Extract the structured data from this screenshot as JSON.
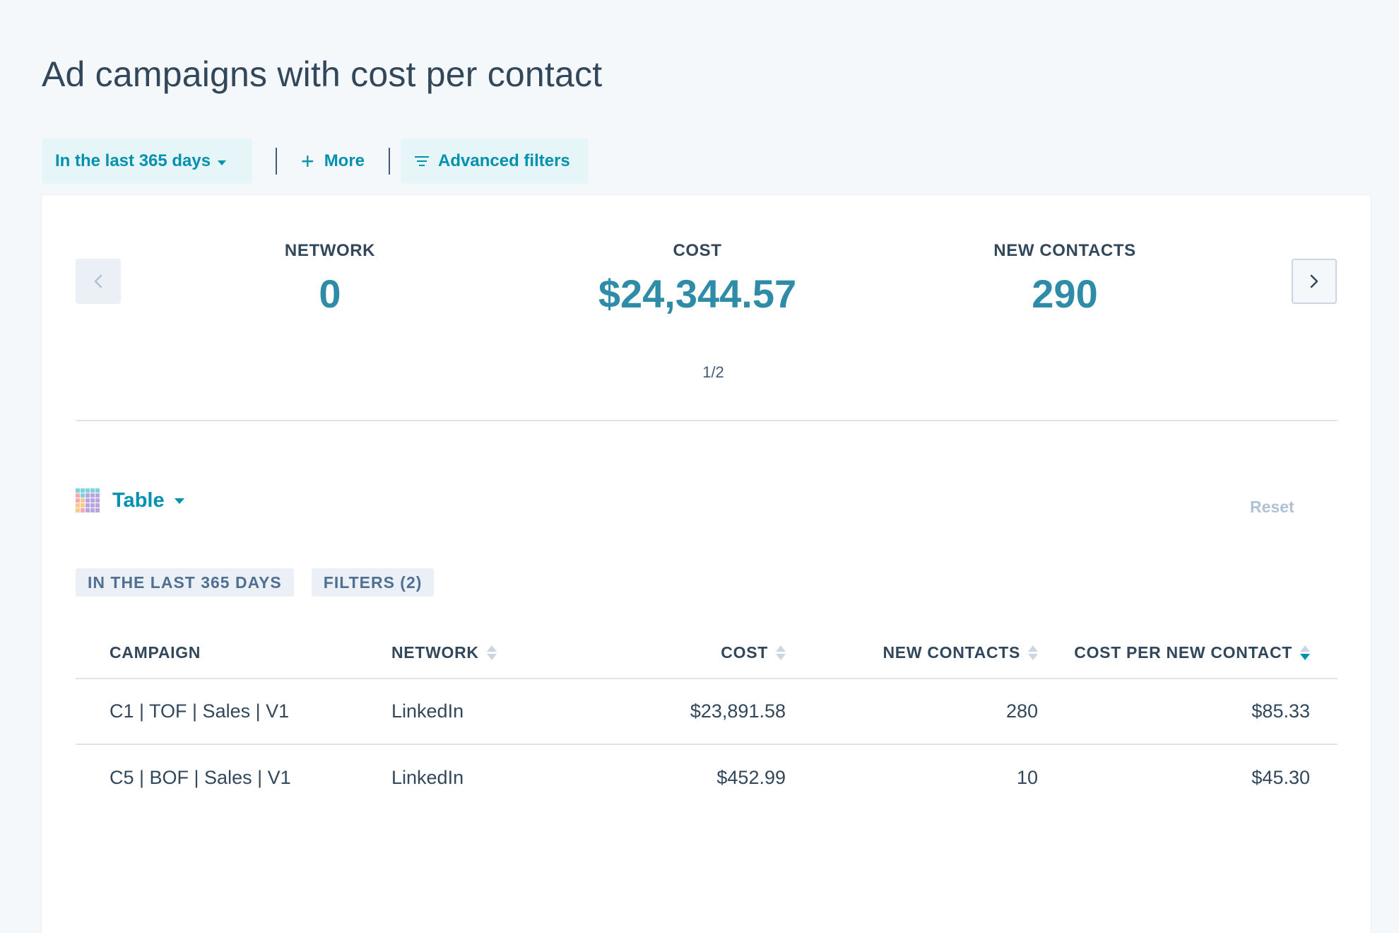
{
  "page_title": "Ad campaigns with cost per contact",
  "filter_bar": {
    "date_range": "In the last 365 days",
    "more": "More",
    "advanced_filters": "Advanced filters"
  },
  "kpis": [
    {
      "label": "NETWORK",
      "value": "0"
    },
    {
      "label": "COST",
      "value": "$24,344.57"
    },
    {
      "label": "NEW CONTACTS",
      "value": "290"
    }
  ],
  "pager": "1/2",
  "visualization": {
    "type_label": "Table",
    "reset": "Reset"
  },
  "tags": [
    "IN THE LAST 365 DAYS",
    "FILTERS (2)"
  ],
  "table": {
    "columns": [
      "CAMPAIGN",
      "NETWORK",
      "COST",
      "NEW CONTACTS",
      "COST PER NEW CONTACT"
    ],
    "sorted_column": "COST PER NEW CONTACT",
    "sort_direction": "descending",
    "rows": [
      {
        "campaign": "C1 | TOF | Sales | V1",
        "network": "LinkedIn",
        "cost": "$23,891.58",
        "new_contacts": "280",
        "cost_per_new_contact": "$85.33"
      },
      {
        "campaign": "C5 | BOF | Sales | V1",
        "network": "LinkedIn",
        "cost": "$452.99",
        "new_contacts": "10",
        "cost_per_new_contact": "$45.30"
      }
    ]
  },
  "colors": {
    "accent": "#0091ae",
    "kpi_value": "#2e8ca8",
    "text": "#33475b",
    "background": "#f5f8fa",
    "pill_background": "#e5f5f8",
    "tag_background": "#eaf0f6",
    "muted": "#b0c1d4"
  },
  "icons": {
    "plus": "plus-icon",
    "filter": "filter-lines-icon",
    "prev": "chevron-left-icon",
    "next": "chevron-right-icon",
    "table": "table-grid-icon",
    "sort": "sort-arrows-icon"
  }
}
